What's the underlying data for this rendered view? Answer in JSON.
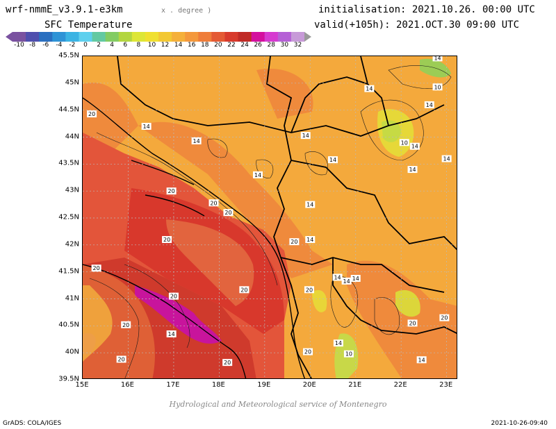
{
  "header": {
    "model": "wrf-nmmE_v3.9.1-e3km",
    "units": "x . degree )",
    "variable": "SFC Temperature",
    "init": "initialisation: 2021.10.26. 00:00 UTC",
    "valid": "valid(+105h): 2021.OCT.30 09:00 UTC"
  },
  "colorbar": {
    "labels": [
      "-10",
      "-8",
      "-6",
      "-4",
      "-2",
      "0",
      "2",
      "4",
      "6",
      "8",
      "10",
      "12",
      "14",
      "16",
      "18",
      "20",
      "22",
      "24",
      "26",
      "28",
      "30",
      "32"
    ],
    "colors": [
      "#7a52a0",
      "#4f4fae",
      "#2a6fc0",
      "#2e93d6",
      "#3bb3e3",
      "#5ed0ee",
      "#63c9a2",
      "#83cc63",
      "#b3d640",
      "#dde637",
      "#f0e030",
      "#f3c833",
      "#f5b03a",
      "#f4983c",
      "#ef7d3a",
      "#e45a34",
      "#d83a2c",
      "#c02a26",
      "#d4109e",
      "#d63ad0",
      "#b560d6",
      "#c79ad8"
    ]
  },
  "axes": {
    "lat": [
      "45.5N",
      "45N",
      "44.5N",
      "44N",
      "43.5N",
      "43N",
      "42.5N",
      "42N",
      "41.5N",
      "41N",
      "40.5N",
      "40N",
      "39.5N"
    ],
    "lon": [
      "15E",
      "16E",
      "17E",
      "18E",
      "19E",
      "20E",
      "21E",
      "22E",
      "23E"
    ]
  },
  "contours": [
    {
      "label": "20",
      "lon": 15.2,
      "lat": 44.43
    },
    {
      "label": "14",
      "lon": 16.4,
      "lat": 44.2
    },
    {
      "label": "14",
      "lon": 17.5,
      "lat": 43.93
    },
    {
      "label": "14",
      "lon": 19.9,
      "lat": 44.03
    },
    {
      "label": "14",
      "lon": 20.5,
      "lat": 43.58
    },
    {
      "label": "14",
      "lon": 21.3,
      "lat": 44.9
    },
    {
      "label": "10",
      "lon": 22.8,
      "lat": 44.93
    },
    {
      "label": "14",
      "lon": 22.62,
      "lat": 44.6
    },
    {
      "label": "10",
      "lon": 22.07,
      "lat": 43.9
    },
    {
      "label": "14",
      "lon": 22.3,
      "lat": 43.83
    },
    {
      "label": "14",
      "lon": 23.0,
      "lat": 43.6
    },
    {
      "label": "14",
      "lon": 22.25,
      "lat": 43.4
    },
    {
      "label": "14",
      "lon": 18.85,
      "lat": 43.3
    },
    {
      "label": "20",
      "lon": 16.95,
      "lat": 43.0
    },
    {
      "label": "20",
      "lon": 17.88,
      "lat": 42.78
    },
    {
      "label": "20",
      "lon": 18.2,
      "lat": 42.6
    },
    {
      "label": "14",
      "lon": 20.0,
      "lat": 42.75
    },
    {
      "label": "20",
      "lon": 16.85,
      "lat": 42.1
    },
    {
      "label": "20",
      "lon": 19.65,
      "lat": 42.06
    },
    {
      "label": "14",
      "lon": 20.0,
      "lat": 42.1
    },
    {
      "label": "20",
      "lon": 15.3,
      "lat": 41.57
    },
    {
      "label": "14",
      "lon": 20.6,
      "lat": 41.4
    },
    {
      "label": "14",
      "lon": 20.8,
      "lat": 41.33
    },
    {
      "label": "14",
      "lon": 21.0,
      "lat": 41.38
    },
    {
      "label": "20",
      "lon": 18.55,
      "lat": 41.17
    },
    {
      "label": "20",
      "lon": 17.0,
      "lat": 41.05
    },
    {
      "label": "20",
      "lon": 19.98,
      "lat": 41.17
    },
    {
      "label": "20",
      "lon": 15.95,
      "lat": 40.52
    },
    {
      "label": "14",
      "lon": 16.95,
      "lat": 40.35
    },
    {
      "label": "14",
      "lon": 20.62,
      "lat": 40.18
    },
    {
      "label": "20",
      "lon": 19.95,
      "lat": 40.02
    },
    {
      "label": "10",
      "lon": 20.85,
      "lat": 39.98
    },
    {
      "label": "20",
      "lon": 18.18,
      "lat": 39.82
    },
    {
      "label": "14",
      "lon": 22.45,
      "lat": 39.87
    },
    {
      "label": "20",
      "lon": 15.85,
      "lat": 39.88
    },
    {
      "label": "20",
      "lon": 22.25,
      "lat": 40.55
    },
    {
      "label": "20",
      "lon": 22.95,
      "lat": 40.65
    },
    {
      "label": "14",
      "lon": 22.8,
      "lat": 45.47
    }
  ],
  "credit": "Hydrological and Meteorological service of Montenegro",
  "footer": {
    "grads": "GrADS: COLA/IGES",
    "timestamp": "2021-10-26-09:40"
  }
}
